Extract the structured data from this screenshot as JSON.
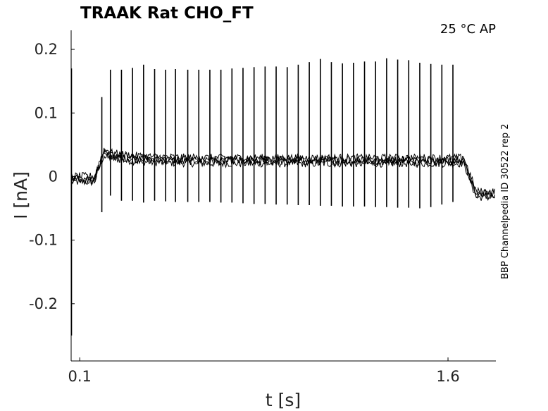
{
  "chart_data": {
    "type": "line",
    "title": "TRAAK  Rat  CHO_FT",
    "annotation": "25 °C  AP",
    "side_label": "BBP Channelpedia ID 30522 rep 2",
    "xlabel": "t [s]",
    "ylabel": "I [nA]",
    "xlim": [
      0.065,
      1.795
    ],
    "ylim": [
      -0.29,
      0.23
    ],
    "xticks": [
      {
        "v": 0.1,
        "label": "0.1"
      },
      {
        "v": 1.6,
        "label": "1.6"
      }
    ],
    "yticks": [
      {
        "v": 0.2,
        "label": "0.2"
      },
      {
        "v": 0.1,
        "label": "0.1"
      },
      {
        "v": 0,
        "label": "0"
      },
      {
        "v": -0.1,
        "label": "-0.1"
      },
      {
        "v": -0.2,
        "label": "-0.2"
      }
    ],
    "baseline_pre": -0.004,
    "baseline_during": 0.025,
    "baseline_post": -0.028,
    "step_on": 0.18,
    "step_off": 1.665,
    "spike_times": [
      0.19,
      0.225,
      0.27,
      0.315,
      0.36,
      0.405,
      0.45,
      0.49,
      0.54,
      0.585,
      0.63,
      0.675,
      0.72,
      0.765,
      0.81,
      0.855,
      0.9,
      0.945,
      0.99,
      1.035,
      1.08,
      1.125,
      1.17,
      1.215,
      1.26,
      1.305,
      1.35,
      1.395,
      1.44,
      1.485,
      1.53,
      1.575,
      1.62
    ],
    "spike_peaks": [
      0.125,
      0.168,
      0.168,
      0.171,
      0.176,
      0.169,
      0.168,
      0.169,
      0.168,
      0.168,
      0.168,
      0.168,
      0.17,
      0.171,
      0.172,
      0.173,
      0.173,
      0.172,
      0.176,
      0.18,
      0.185,
      0.18,
      0.178,
      0.179,
      0.181,
      0.181,
      0.186,
      0.184,
      0.183,
      0.179,
      0.177,
      0.176,
      0.176
    ],
    "spike_troughs": [
      -0.056,
      -0.03,
      -0.038,
      -0.038,
      -0.041,
      -0.038,
      -0.039,
      -0.04,
      -0.04,
      -0.04,
      -0.04,
      -0.041,
      -0.041,
      -0.042,
      -0.043,
      -0.043,
      -0.044,
      -0.044,
      -0.045,
      -0.045,
      -0.046,
      -0.046,
      -0.047,
      -0.047,
      -0.047,
      -0.048,
      -0.048,
      -0.049,
      -0.049,
      -0.05,
      -0.048,
      -0.044,
      -0.04
    ],
    "grid": false,
    "legend": "none"
  }
}
